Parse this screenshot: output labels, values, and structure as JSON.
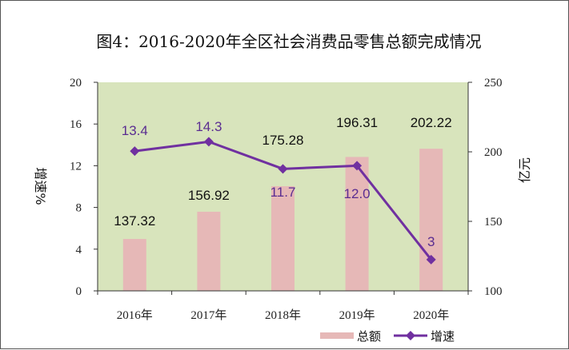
{
  "chart_data": {
    "type": "bar",
    "title": "图4：2016-2020年全区社会消费品零售总额完成情况",
    "categories": [
      "2016年",
      "2017年",
      "2018年",
      "2019年",
      "2020年"
    ],
    "series": [
      {
        "name": "总额",
        "type": "bar",
        "axis": "right",
        "values": [
          137.32,
          156.92,
          175.28,
          196.31,
          202.22
        ],
        "labels": [
          "137.32",
          "156.92",
          "175.28",
          "196.31",
          "202.22"
        ],
        "color": "#e6b8b7"
      },
      {
        "name": "增速",
        "type": "line",
        "axis": "left",
        "values": [
          13.4,
          14.3,
          11.7,
          12.0,
          3
        ],
        "labels": [
          "13.4",
          "14.3",
          "11.7",
          "12.0",
          "3"
        ],
        "color": "#7030a0"
      }
    ],
    "left_axis": {
      "label": "增速%",
      "ylim": [
        0,
        20
      ],
      "ticks": [
        "0",
        "4",
        "8",
        "12",
        "16",
        "20"
      ]
    },
    "right_axis": {
      "label": "亿元",
      "ylim": [
        100,
        250
      ],
      "ticks": [
        "100",
        "150",
        "200",
        "250"
      ]
    },
    "plot_background": "#d8e4bc",
    "grid": false,
    "legend_position": "bottom-right"
  }
}
